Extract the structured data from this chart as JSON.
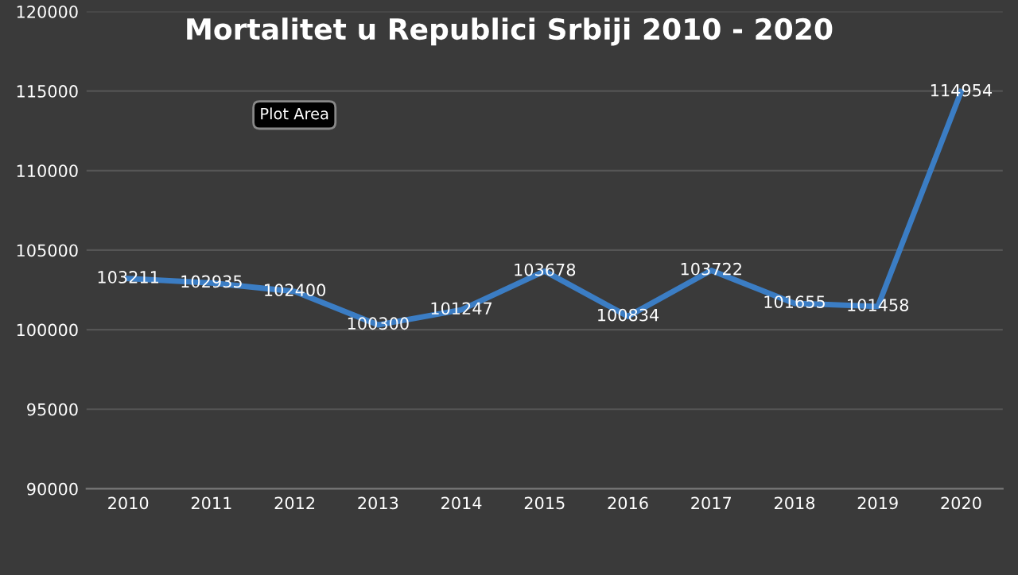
{
  "chart_data": {
    "type": "line",
    "title": "Mortalitet u Republici Srbiji 2010 - 2020",
    "categories": [
      "2010",
      "2011",
      "2012",
      "2013",
      "2014",
      "2015",
      "2016",
      "2017",
      "2018",
      "2019",
      "2020"
    ],
    "series": [
      {
        "color": "#3b7dc4",
        "values": [
          103211,
          102935,
          102400,
          100300,
          101247,
          103678,
          100834,
          103722,
          101655,
          101458,
          114954
        ]
      }
    ],
    "ylim": [
      90000,
      120000
    ],
    "yticks": [
      90000,
      95000,
      100000,
      105000,
      110000,
      115000,
      120000
    ],
    "grid": "y",
    "data_labels": true,
    "marker": "none",
    "line_style": "solid",
    "legend": false,
    "annotations": [
      "Plot Area"
    ]
  }
}
